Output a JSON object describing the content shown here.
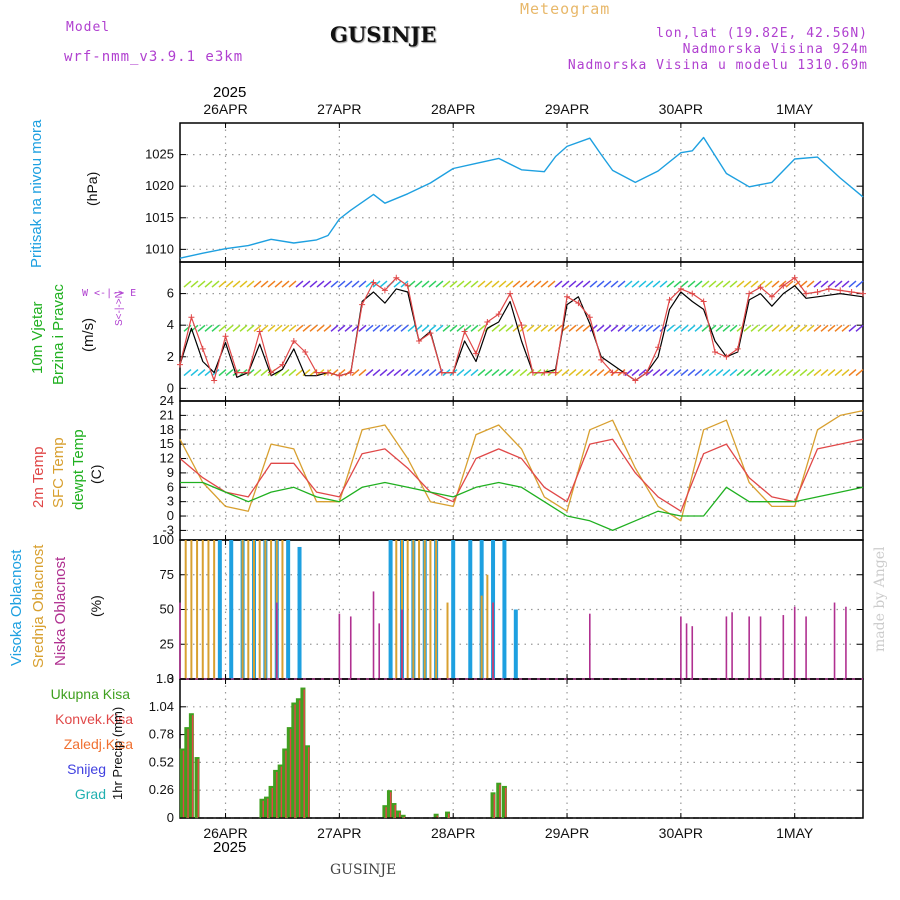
{
  "header": {
    "model_label": "Model",
    "model_name": "wrf-nmm_v3.9.1  e3km",
    "title": "GUSINJE",
    "subtitle": "Meteogram",
    "lonlat": "lon,lat (19.82E, 42.56N)",
    "elevation": "Nadmorska Visina 924m",
    "model_elevation": "Nadmorska Visina u modelu 1310.69m",
    "footer_station": "GUSINJE",
    "watermark": "made by Angel"
  },
  "time_axis": {
    "year": "2025",
    "labels": [
      "26APR",
      "27APR",
      "28APR",
      "29APR",
      "30APR",
      "1MAY"
    ],
    "start_day": 25.6,
    "end_day": 31.6
  },
  "colors": {
    "pressure": "#1ea0e0",
    "wind_speed": "#000000",
    "wind_gust": "#e04848",
    "temp2m": "#e04848",
    "sfc_temp": "#d8a030",
    "dewpoint": "#20b020",
    "cloud_high": "#1ea0e0",
    "cloud_mid": "#d8a030",
    "cloud_low": "#b03090",
    "precip_total": "#40a020",
    "precip_conv": "#e04848",
    "precip_ice": "#f07030",
    "snow": "#4040e0",
    "hail": "#20b0b0",
    "wind_label": "#20b020",
    "compass": "#b040d0"
  },
  "panel_labels": {
    "pressure": {
      "title": "Pritisak na nivou mora",
      "unit": "(hPa)"
    },
    "wind": {
      "title1": "10m Vjetar",
      "title2": "Brzina i Pravac",
      "unit": "(m/s)",
      "compass": "W  <-|->  E",
      "compass_ns": "S<-|->N"
    },
    "temp": {
      "t2m": "2m Temp",
      "sfc": "SFC Temp",
      "dew": "dewpt Temp",
      "unit": "(C)"
    },
    "cloud": {
      "high": "Visoka Oblacnost",
      "mid": "Srednja Oblacnost",
      "low": "Niska Oblacnost",
      "unit": "(%)"
    },
    "precip": {
      "total": "Ukupna Kisa",
      "conv": "Konvek.Kisa",
      "ice": "Zaledj.Kisa",
      "snow": "Snijeg",
      "hail": "Grad",
      "unit": "1hr Precip (mm)"
    }
  },
  "chart_data": [
    {
      "type": "line",
      "title": "Pritisak na nivou mora",
      "ylabel": "(hPa)",
      "ylim": [
        1008,
        1030
      ],
      "yticks": [
        1010,
        1015,
        1020,
        1025
      ],
      "series": [
        {
          "name": "Pressure",
          "x": [
            25.6,
            25.8,
            26.0,
            26.2,
            26.4,
            26.6,
            26.8,
            26.9,
            27.0,
            27.1,
            27.3,
            27.4,
            27.6,
            27.8,
            28.0,
            28.2,
            28.4,
            28.6,
            28.8,
            28.9,
            29.0,
            29.2,
            29.3,
            29.4,
            29.6,
            29.8,
            30.0,
            30.1,
            30.2,
            30.4,
            30.6,
            30.8,
            31.0,
            31.2,
            31.4,
            31.6
          ],
          "values": [
            1008.6,
            1009.4,
            1010.1,
            1010.6,
            1011.6,
            1011.0,
            1011.5,
            1012.2,
            1014.8,
            1016.2,
            1018.7,
            1017.3,
            1018.8,
            1020.5,
            1022.8,
            1023.6,
            1024.4,
            1022.6,
            1022.3,
            1024.7,
            1026.3,
            1027.6,
            1025.0,
            1022.5,
            1020.6,
            1022.4,
            1025.3,
            1025.6,
            1027.7,
            1022.0,
            1019.9,
            1020.6,
            1024.3,
            1024.6,
            1021.3,
            1018.3
          ]
        }
      ]
    },
    {
      "type": "line",
      "title": "10m Vjetar Brzina i Pravac",
      "ylabel": "(m/s)",
      "ylim": [
        -0.8,
        8
      ],
      "yticks": [
        0,
        2,
        4,
        6
      ],
      "series": [
        {
          "name": "Wind speed",
          "x": [
            25.6,
            25.7,
            25.8,
            25.9,
            26.0,
            26.1,
            26.2,
            26.3,
            26.4,
            26.5,
            26.6,
            26.7,
            26.8,
            26.9,
            27.0,
            27.1,
            27.2,
            27.3,
            27.4,
            27.5,
            27.6,
            27.7,
            27.8,
            27.9,
            28.0,
            28.1,
            28.2,
            28.3,
            28.4,
            28.5,
            28.6,
            28.7,
            28.8,
            28.9,
            29.0,
            29.1,
            29.2,
            29.3,
            29.4,
            29.5,
            29.6,
            29.7,
            29.8,
            29.9,
            30.0,
            30.1,
            30.2,
            30.3,
            30.4,
            30.5,
            30.6,
            30.7,
            30.8,
            30.9,
            31.0,
            31.1,
            31.2,
            31.3,
            31.4,
            31.5,
            31.6
          ],
          "values": [
            1.5,
            3.8,
            1.7,
            1.0,
            2.9,
            0.7,
            1.0,
            2.8,
            0.8,
            1.2,
            2.5,
            0.8,
            0.8,
            1.0,
            0.8,
            1.0,
            5.5,
            6.1,
            5.4,
            6.3,
            6.1,
            3.0,
            3.6,
            1.0,
            1.0,
            3.0,
            1.7,
            3.8,
            4.2,
            5.5,
            3.0,
            1.0,
            1.0,
            1.2,
            5.3,
            5.8,
            4.1,
            2.0,
            1.5,
            1.0,
            0.5,
            1.0,
            2.0,
            5.0,
            6.1,
            5.5,
            5.0,
            3.0,
            2.0,
            2.3,
            5.6,
            6.0,
            5.2,
            6.0,
            6.5,
            5.7,
            5.8,
            5.9,
            6.0,
            5.9,
            5.8
          ]
        },
        {
          "name": "Wind gust",
          "x": [
            25.6,
            25.7,
            25.8,
            25.9,
            26.0,
            26.1,
            26.2,
            26.3,
            26.4,
            26.5,
            26.6,
            26.7,
            26.8,
            26.9,
            27.0,
            27.1,
            27.2,
            27.3,
            27.4,
            27.5,
            27.6,
            27.7,
            27.8,
            27.9,
            28.0,
            28.1,
            28.2,
            28.3,
            28.4,
            28.5,
            28.6,
            28.7,
            28.8,
            28.9,
            29.0,
            29.1,
            29.2,
            29.3,
            29.4,
            29.5,
            29.6,
            29.7,
            29.8,
            29.9,
            30.0,
            30.1,
            30.2,
            30.3,
            30.4,
            30.5,
            30.6,
            30.7,
            30.8,
            30.9,
            31.0,
            31.1,
            31.2,
            31.3,
            31.4,
            31.5,
            31.6
          ],
          "values": [
            1.5,
            4.5,
            2.5,
            0.5,
            3.3,
            1.0,
            1.0,
            3.6,
            1.0,
            1.5,
            3.0,
            2.3,
            1.0,
            1.0,
            0.8,
            1.0,
            5.3,
            6.7,
            6.2,
            7.0,
            6.5,
            3.0,
            3.5,
            1.0,
            1.0,
            3.6,
            2.2,
            4.2,
            4.7,
            6.0,
            4.0,
            1.0,
            1.0,
            1.0,
            5.8,
            5.4,
            4.5,
            1.8,
            1.0,
            1.0,
            0.5,
            1.0,
            2.6,
            5.6,
            6.3,
            6.0,
            5.5,
            2.3,
            2.0,
            2.5,
            6.0,
            6.4,
            5.8,
            6.5,
            7.0,
            6.0,
            6.1,
            6.3,
            6.2,
            6.1,
            6.0
          ]
        }
      ]
    },
    {
      "type": "line",
      "title": "Temperatura",
      "ylabel": "(C)",
      "ylim": [
        -5,
        24
      ],
      "yticks": [
        -3,
        0,
        3,
        6,
        9,
        12,
        15,
        18,
        21,
        24
      ],
      "series": [
        {
          "name": "2m Temp",
          "x": [
            25.6,
            25.8,
            26.0,
            26.2,
            26.4,
            26.6,
            26.8,
            27.0,
            27.2,
            27.4,
            27.6,
            27.8,
            28.0,
            28.2,
            28.4,
            28.6,
            28.8,
            29.0,
            29.2,
            29.4,
            29.6,
            29.8,
            30.0,
            30.2,
            30.4,
            30.6,
            30.8,
            31.0,
            31.2,
            31.4,
            31.6
          ],
          "values": [
            12,
            8,
            5,
            4,
            11,
            11,
            5,
            4,
            13,
            14,
            10,
            5,
            3,
            12,
            14,
            12,
            6,
            3,
            15,
            16,
            9,
            4,
            1,
            13,
            15,
            8,
            4,
            3,
            14,
            15,
            16
          ]
        },
        {
          "name": "SFC Temp",
          "x": [
            25.6,
            25.8,
            26.0,
            26.2,
            26.4,
            26.6,
            26.8,
            27.0,
            27.2,
            27.4,
            27.6,
            27.8,
            28.0,
            28.2,
            28.4,
            28.6,
            28.8,
            29.0,
            29.2,
            29.4,
            29.6,
            29.8,
            30.0,
            30.2,
            30.4,
            30.6,
            30.8,
            31.0,
            31.2,
            31.4,
            31.6
          ],
          "values": [
            16,
            7,
            2,
            1,
            15,
            14,
            3,
            3,
            18,
            19,
            12,
            3,
            2,
            17,
            19,
            14,
            4,
            1,
            18,
            20,
            10,
            2,
            -1,
            18,
            20,
            7,
            2,
            2,
            18,
            21,
            22
          ]
        },
        {
          "name": "dewpt Temp",
          "x": [
            25.6,
            25.8,
            26.0,
            26.2,
            26.4,
            26.6,
            26.8,
            27.0,
            27.2,
            27.4,
            27.6,
            27.8,
            28.0,
            28.2,
            28.4,
            28.6,
            28.8,
            29.0,
            29.2,
            29.4,
            29.6,
            29.8,
            30.0,
            30.2,
            30.4,
            30.6,
            30.8,
            31.0,
            31.2,
            31.4,
            31.6
          ],
          "values": [
            7,
            7,
            5,
            3,
            5,
            6,
            4,
            3,
            6,
            7,
            6,
            5,
            4,
            6,
            7,
            6,
            3,
            0,
            -1,
            -3,
            -1,
            1,
            0,
            0,
            6,
            3,
            3,
            3,
            4,
            5,
            6
          ]
        }
      ]
    },
    {
      "type": "bar",
      "title": "Oblacnost",
      "ylabel": "(%)",
      "ylim": [
        0,
        100
      ],
      "yticks": [
        0,
        25,
        50,
        75,
        100
      ],
      "series": [
        {
          "name": "Visoka Oblacnost",
          "x": [
            25.95,
            26.05,
            26.15,
            26.25,
            26.35,
            26.45,
            26.55,
            26.65,
            27.45,
            27.55,
            27.65,
            27.75,
            27.85,
            28.0,
            28.15,
            28.25,
            28.35,
            28.45,
            28.55
          ],
          "values": [
            100,
            100,
            100,
            100,
            100,
            100,
            100,
            95,
            100,
            100,
            100,
            100,
            100,
            100,
            100,
            100,
            100,
            100,
            50
          ]
        },
        {
          "name": "Srednja Oblacnost",
          "x": [
            25.65,
            25.7,
            25.75,
            25.8,
            25.85,
            25.9,
            26.15,
            26.2,
            26.25,
            26.3,
            26.35,
            26.4,
            26.45,
            26.5,
            27.5,
            27.55,
            27.6,
            27.65,
            27.7,
            27.75,
            27.8,
            27.85,
            27.95,
            28.25,
            28.3,
            28.35
          ],
          "values": [
            100,
            100,
            100,
            100,
            100,
            100,
            100,
            100,
            100,
            100,
            100,
            100,
            100,
            100,
            100,
            100,
            100,
            100,
            100,
            100,
            100,
            100,
            55,
            60,
            75,
            55
          ]
        },
        {
          "name": "Niska Oblacnost",
          "x": [
            25.6,
            26.45,
            27.0,
            27.1,
            27.3,
            27.35,
            27.55,
            28.35,
            29.2,
            30.0,
            30.05,
            30.1,
            30.4,
            30.45,
            30.6,
            30.7,
            30.9,
            31.0,
            31.1,
            31.35,
            31.45
          ],
          "values": [
            55,
            55,
            47,
            45,
            63,
            40,
            50,
            55,
            47,
            45,
            40,
            38,
            45,
            48,
            45,
            45,
            46,
            52,
            45,
            55,
            52
          ]
        }
      ]
    },
    {
      "type": "bar",
      "title": "1hr Precip",
      "ylabel": "(mm)",
      "ylim": [
        0,
        1.3
      ],
      "yticks": [
        0,
        0.26,
        0.52,
        0.78,
        1.04,
        1.3
      ],
      "series": [
        {
          "name": "Ukupna Kisa",
          "x": [
            25.62,
            25.66,
            25.7,
            25.75,
            26.32,
            26.36,
            26.4,
            26.44,
            26.48,
            26.52,
            26.56,
            26.6,
            26.64,
            26.68,
            26.72,
            27.4,
            27.44,
            27.48,
            27.52,
            27.56,
            27.85,
            27.95,
            28.35,
            28.4,
            28.45
          ],
          "values": [
            0.65,
            0.85,
            0.98,
            0.57,
            0.18,
            0.2,
            0.3,
            0.45,
            0.5,
            0.65,
            0.85,
            1.08,
            1.12,
            1.22,
            0.68,
            0.12,
            0.26,
            0.14,
            0.07,
            0.03,
            0.04,
            0.06,
            0.24,
            0.33,
            0.3
          ]
        }
      ]
    }
  ]
}
